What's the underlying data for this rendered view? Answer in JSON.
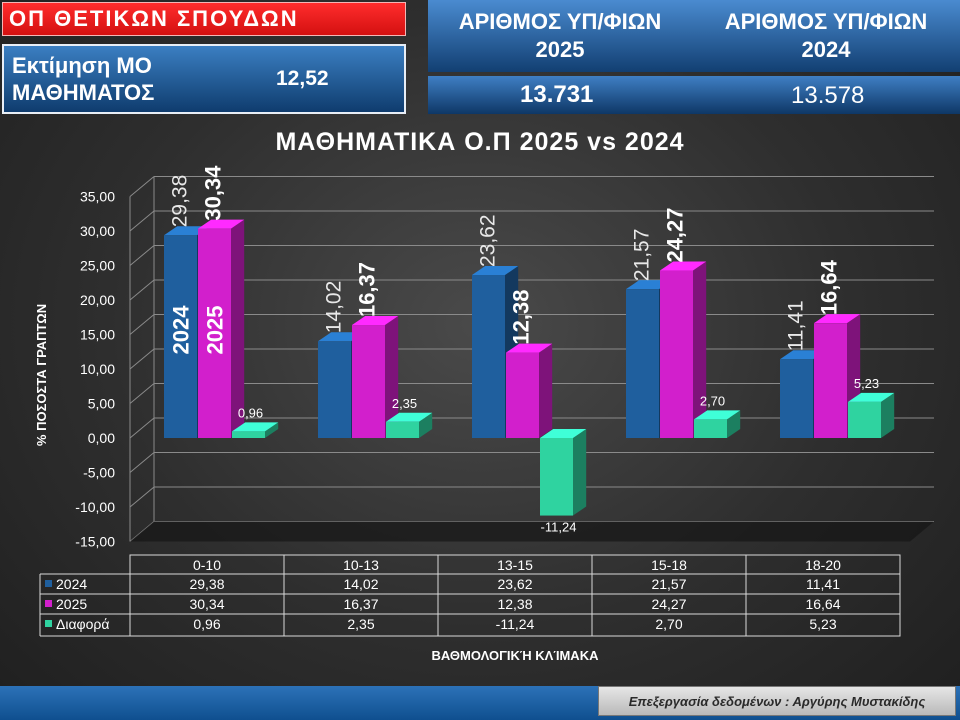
{
  "header": {
    "program": "ΟΠ ΘΕΤΙΚΩΝ ΣΠΟΥΔΩΝ",
    "estimate_label": "Εκτίμηση ΜΟ ΜΑΘΗΜΑΤΟΣ",
    "estimate_value": "12,52",
    "candidates_2025_label": "ΑΡΙΘΜΟΣ ΥΠ/ΦΙΩΝ 2025",
    "candidates_2024_label": "ΑΡΙΘΜΟΣ ΥΠ/ΦΙΩΝ 2024",
    "candidates_2025": "13.731",
    "candidates_2024": "13.578"
  },
  "footer": {
    "credit": "Επεξεργασία δεδομένων : Αργύρης Μυστακίδης"
  },
  "chart_data": {
    "type": "bar",
    "title": "ΜΑΘΗΜΑΤΙΚΑ Ο.Π 2025 vs 2024",
    "xlabel": "ΒΑΘΜΟΛΟΓΙΚΉ ΚΛΊΜΑΚΑ",
    "ylabel": "% ΠΟΣΟΣΤΑ ΓΡΑΠΤΩΝ",
    "categories": [
      "0-10",
      "10-13",
      "13-15",
      "15-18",
      "18-20"
    ],
    "ylim": [
      -15,
      35
    ],
    "yticks": [
      "-15,00",
      "-10,00",
      "-5,00",
      "0,00",
      "5,00",
      "10,00",
      "15,00",
      "20,00",
      "25,00",
      "30,00",
      "35,00"
    ],
    "in_bar_labels": [
      "2024",
      "2025"
    ],
    "series": [
      {
        "name": "2024",
        "values": [
          29.38,
          14.02,
          23.62,
          21.57,
          11.41
        ],
        "labels": [
          "29,38",
          "14,02",
          "23,62",
          "21,57",
          "11,41"
        ],
        "color": "#1f5f9e"
      },
      {
        "name": "2025",
        "values": [
          30.34,
          16.37,
          12.38,
          24.27,
          16.64
        ],
        "labels": [
          "30,34",
          "16,37",
          "12,38",
          "24,27",
          "16,64"
        ],
        "color": "#d21fcc"
      },
      {
        "name": "Διαφορά",
        "values": [
          0.96,
          2.35,
          -11.24,
          2.7,
          5.23
        ],
        "labels": [
          "0,96",
          "2,35",
          "-11,24",
          "2,70",
          "5,23"
        ],
        "color": "#2fd3a0"
      }
    ],
    "grid": true,
    "legend": "data-table"
  }
}
